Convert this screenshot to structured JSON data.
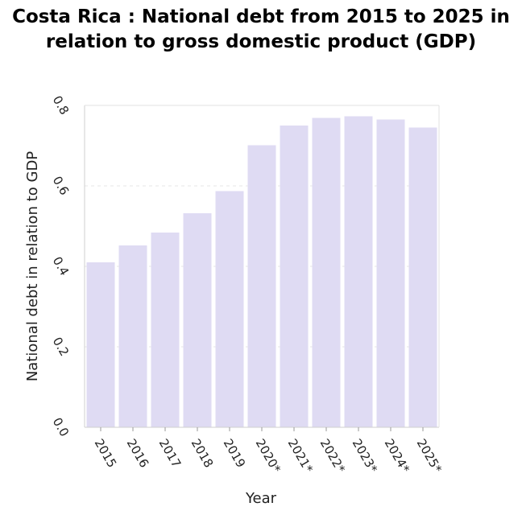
{
  "chart_data": {
    "type": "bar",
    "title": "Costa Rica : National debt from 2015 to 2025 in relation to gross domestic product (GDP)",
    "xlabel": "Year",
    "ylabel": "National debt in relation to GDP",
    "categories": [
      "2015",
      "2016",
      "2017",
      "2018",
      "2019",
      "2020*",
      "2021*",
      "2022*",
      "2023*",
      "2024*",
      "2025*"
    ],
    "values": [
      0.41,
      0.452,
      0.484,
      0.532,
      0.587,
      0.701,
      0.75,
      0.769,
      0.773,
      0.765,
      0.745
    ],
    "ylim": [
      0,
      0.8
    ],
    "yticks": [
      "0.0",
      "0.2",
      "0.4",
      "0.6",
      "0.8"
    ],
    "grid": "horizontal dashed",
    "bar_color": "#dfdbf3"
  }
}
